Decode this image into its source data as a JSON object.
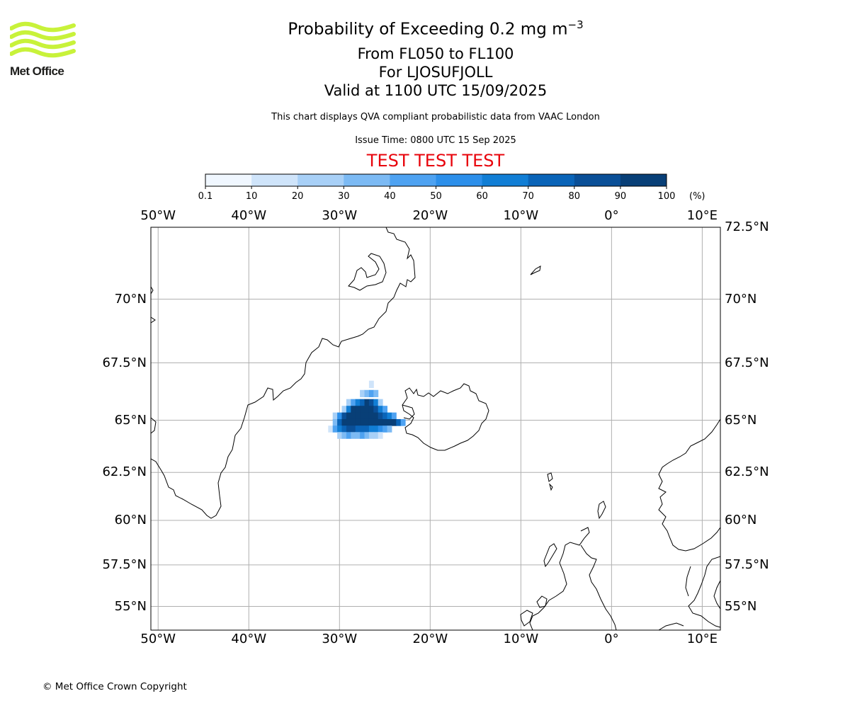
{
  "logo": {
    "text": "Met Office",
    "brand_color": "#c8f23a"
  },
  "title": {
    "main": "Probability of Exceeding 0.2 mg m",
    "main_exponent": "−3",
    "line1": "From FL050 to FL100",
    "line2": "For LJOSUFJOLL",
    "line3": "Valid at 1100 UTC 15/09/2025"
  },
  "subtitle": "This chart displays QVA compliant probabilistic data from VAAC London",
  "issue_time": "Issue Time: 0800 UTC 15 Sep 2025",
  "test_banner": "TEST TEST TEST",
  "test_color": "#e8040c",
  "colorbar": {
    "ticks": [
      "0.1",
      "10",
      "20",
      "30",
      "40",
      "50",
      "60",
      "70",
      "80",
      "90",
      "100"
    ],
    "unit": "(%)",
    "colors": [
      "#f0f7ff",
      "#cfe4fa",
      "#a8d0f7",
      "#7cbaf4",
      "#4ea2f1",
      "#2c8fea",
      "#117ed5",
      "#0a64b8",
      "#0a4f97",
      "#083f77",
      "#062a52"
    ]
  },
  "map": {
    "lon_labels": [
      "50°W",
      "40°W",
      "30°W",
      "20°W",
      "10°W",
      "0°",
      "10°E"
    ],
    "lat_labels_left": [
      "70°N",
      "67.5°N",
      "65°N",
      "62.5°N",
      "60°N",
      "57.5°N",
      "55°N"
    ],
    "lat_labels_right": [
      "72.5°N",
      "70°N",
      "67.5°N",
      "65°N",
      "62.5°N",
      "60°N",
      "57.5°N",
      "55°N"
    ],
    "grid": true
  },
  "chart_data": {
    "type": "heatmap",
    "title": "Probability of Exceeding 0.2 mg m−3",
    "xlabel": "",
    "ylabel": "",
    "xlim": [
      -50.8,
      12
    ],
    "ylim": [
      53.5,
      72.5
    ],
    "unit": "(%)",
    "color_levels": [
      0.1,
      10,
      20,
      30,
      40,
      50,
      60,
      70,
      80,
      90,
      100
    ],
    "cells": [
      [
        -26.5,
        66.6,
        15
      ],
      [
        -27.5,
        66.2,
        20
      ],
      [
        -27.0,
        66.2,
        30
      ],
      [
        -26.5,
        66.2,
        40
      ],
      [
        -26.0,
        66.2,
        30
      ],
      [
        -29.0,
        65.8,
        20
      ],
      [
        -28.5,
        65.8,
        40
      ],
      [
        -28.0,
        65.8,
        60
      ],
      [
        -27.5,
        65.8,
        75
      ],
      [
        -27.0,
        65.8,
        90
      ],
      [
        -26.5,
        65.8,
        85
      ],
      [
        -26.0,
        65.8,
        60
      ],
      [
        -25.5,
        65.8,
        25
      ],
      [
        -29.5,
        65.5,
        25
      ],
      [
        -29.0,
        65.5,
        65
      ],
      [
        -28.5,
        65.5,
        90
      ],
      [
        -28.0,
        65.5,
        95
      ],
      [
        -27.5,
        65.5,
        95
      ],
      [
        -27.0,
        65.5,
        95
      ],
      [
        -26.5,
        65.5,
        95
      ],
      [
        -26.0,
        65.5,
        85
      ],
      [
        -25.5,
        65.5,
        60
      ],
      [
        -25.0,
        65.5,
        40
      ],
      [
        -30.5,
        65.2,
        20
      ],
      [
        -30.0,
        65.2,
        50
      ],
      [
        -29.5,
        65.2,
        85
      ],
      [
        -29.0,
        65.2,
        95
      ],
      [
        -28.5,
        65.2,
        95
      ],
      [
        -28.0,
        65.2,
        95
      ],
      [
        -27.5,
        65.2,
        95
      ],
      [
        -27.0,
        65.2,
        95
      ],
      [
        -26.5,
        65.2,
        95
      ],
      [
        -26.0,
        65.2,
        95
      ],
      [
        -25.5,
        65.2,
        85
      ],
      [
        -25.0,
        65.2,
        75
      ],
      [
        -24.5,
        65.2,
        60
      ],
      [
        -24.0,
        65.2,
        40
      ],
      [
        -30.5,
        64.9,
        30
      ],
      [
        -30.0,
        64.9,
        70
      ],
      [
        -29.5,
        64.9,
        90
      ],
      [
        -29.0,
        64.9,
        95
      ],
      [
        -28.5,
        64.9,
        95
      ],
      [
        -28.0,
        64.9,
        95
      ],
      [
        -27.5,
        64.9,
        95
      ],
      [
        -27.0,
        64.9,
        95
      ],
      [
        -26.5,
        64.9,
        95
      ],
      [
        -26.0,
        64.9,
        95
      ],
      [
        -25.5,
        64.9,
        95
      ],
      [
        -25.0,
        64.9,
        95
      ],
      [
        -24.5,
        64.9,
        95
      ],
      [
        -24.0,
        64.9,
        90
      ],
      [
        -23.5,
        64.9,
        70
      ],
      [
        -23.0,
        64.9,
        40
      ],
      [
        -31.0,
        64.6,
        10
      ],
      [
        -30.5,
        64.6,
        40
      ],
      [
        -30.0,
        64.6,
        65
      ],
      [
        -29.5,
        64.6,
        75
      ],
      [
        -29.0,
        64.6,
        85
      ],
      [
        -28.5,
        64.6,
        80
      ],
      [
        -28.0,
        64.6,
        75
      ],
      [
        -27.5,
        64.6,
        75
      ],
      [
        -27.0,
        64.6,
        70
      ],
      [
        -26.5,
        64.6,
        65
      ],
      [
        -26.0,
        64.6,
        65
      ],
      [
        -25.5,
        64.6,
        55
      ],
      [
        -25.0,
        64.6,
        45
      ],
      [
        -24.5,
        64.6,
        30
      ],
      [
        -30.0,
        64.3,
        20
      ],
      [
        -29.5,
        64.3,
        30
      ],
      [
        -29.0,
        64.3,
        40
      ],
      [
        -28.5,
        64.3,
        35
      ],
      [
        -28.0,
        64.3,
        30
      ],
      [
        -27.5,
        64.3,
        40
      ],
      [
        -27.0,
        64.3,
        35
      ],
      [
        -26.5,
        64.3,
        25
      ],
      [
        -26.0,
        64.3,
        20
      ],
      [
        -25.5,
        64.3,
        15
      ]
    ]
  },
  "copyright": "© Met Office Crown Copyright"
}
